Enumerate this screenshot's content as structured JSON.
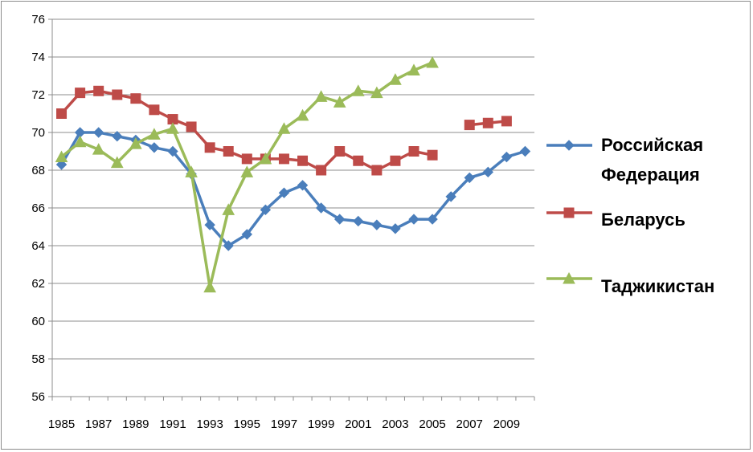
{
  "chart_data": {
    "type": "line",
    "title": "",
    "xlabel": "",
    "ylabel": "",
    "ylim": [
      56,
      76
    ],
    "ytick_step": 2,
    "xlim": [
      1985,
      2010
    ],
    "xtick_labels": [
      "1985",
      "1987",
      "1989",
      "1991",
      "1993",
      "1995",
      "1997",
      "1999",
      "2001",
      "2003",
      "2005",
      "2007",
      "2009"
    ],
    "grid": "horizontal",
    "legend": "right",
    "series": [
      {
        "name": "Российская Федерация",
        "color": "#4a7ebb",
        "marker": "diamond",
        "points": [
          [
            1985,
            68.3
          ],
          [
            1986,
            70.0
          ],
          [
            1987,
            70.0
          ],
          [
            1988,
            69.8
          ],
          [
            1989,
            69.6
          ],
          [
            1990,
            69.2
          ],
          [
            1991,
            69.0
          ],
          [
            1992,
            67.8
          ],
          [
            1993,
            65.1
          ],
          [
            1994,
            64.0
          ],
          [
            1995,
            64.6
          ],
          [
            1996,
            65.9
          ],
          [
            1997,
            66.8
          ],
          [
            1998,
            67.2
          ],
          [
            1999,
            66.0
          ],
          [
            2000,
            65.4
          ],
          [
            2001,
            65.3
          ],
          [
            2002,
            65.1
          ],
          [
            2003,
            64.9
          ],
          [
            2004,
            65.4
          ],
          [
            2005,
            65.4
          ],
          [
            2006,
            66.6
          ],
          [
            2007,
            67.6
          ],
          [
            2008,
            67.9
          ],
          [
            2009,
            68.7
          ],
          [
            2010,
            69.0
          ]
        ]
      },
      {
        "name": "Беларусь",
        "color": "#be4b48",
        "marker": "square",
        "points": [
          [
            1985,
            71.0
          ],
          [
            1986,
            72.1
          ],
          [
            1987,
            72.2
          ],
          [
            1988,
            72.0
          ],
          [
            1989,
            71.8
          ],
          [
            1990,
            71.2
          ],
          [
            1991,
            70.7
          ],
          [
            1992,
            70.3
          ],
          [
            1993,
            69.2
          ],
          [
            1994,
            69.0
          ],
          [
            1995,
            68.6
          ],
          [
            1996,
            68.6
          ],
          [
            1997,
            68.6
          ],
          [
            1998,
            68.5
          ],
          [
            1999,
            68.0
          ],
          [
            2000,
            69.0
          ],
          [
            2001,
            68.5
          ],
          [
            2002,
            68.0
          ],
          [
            2003,
            68.5
          ],
          [
            2004,
            69.0
          ],
          [
            2005,
            68.8
          ],
          null,
          [
            2007,
            70.4
          ],
          [
            2008,
            70.5
          ],
          [
            2009,
            70.6
          ]
        ]
      },
      {
        "name": "Таджикистан",
        "color": "#9bbb59",
        "marker": "triangle",
        "points": [
          [
            1985,
            68.7
          ],
          [
            1986,
            69.5
          ],
          [
            1987,
            69.1
          ],
          [
            1988,
            68.4
          ],
          [
            1989,
            69.4
          ],
          [
            1990,
            69.9
          ],
          [
            1991,
            70.2
          ],
          [
            1992,
            67.9
          ],
          [
            1993,
            61.8
          ],
          [
            1994,
            65.9
          ],
          [
            1995,
            67.9
          ],
          [
            1996,
            68.6
          ],
          [
            1997,
            70.2
          ],
          [
            1998,
            70.9
          ],
          [
            1999,
            71.9
          ],
          [
            2000,
            71.6
          ],
          [
            2001,
            72.2
          ],
          [
            2002,
            72.1
          ],
          [
            2003,
            72.8
          ],
          [
            2004,
            73.3
          ],
          [
            2005,
            73.7
          ]
        ]
      }
    ]
  }
}
